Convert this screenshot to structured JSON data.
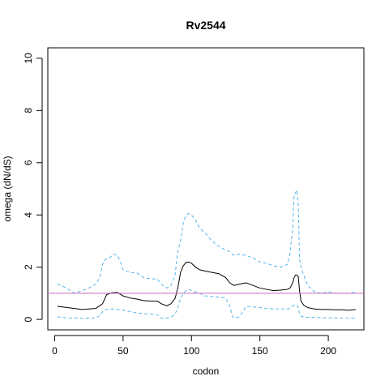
{
  "chart_data": {
    "type": "line",
    "title": "Rv2544",
    "xlabel": "codon",
    "ylabel": "omega (dN/dS)",
    "xlim": [
      -5,
      226
    ],
    "ylim": [
      -0.4,
      10.4
    ],
    "xticks": [
      0,
      50,
      100,
      150,
      200
    ],
    "yticks": [
      0,
      2,
      4,
      6,
      8,
      10
    ],
    "grid": false,
    "legend": "none",
    "reference_line": {
      "y": 1,
      "color": "#c86bbd"
    },
    "series": [
      {
        "role": "median",
        "style": "solid",
        "color": "#000000",
        "x": [
          2,
          10,
          20,
          30,
          35,
          38,
          42,
          46,
          50,
          55,
          60,
          65,
          70,
          75,
          78,
          82,
          85,
          88,
          90,
          92,
          94,
          96,
          98,
          100,
          103,
          106,
          110,
          115,
          120,
          125,
          128,
          131,
          135,
          140,
          145,
          150,
          155,
          160,
          165,
          170,
          172,
          174,
          175,
          176,
          177,
          178,
          179,
          180,
          182,
          185,
          190,
          195,
          200,
          205,
          210,
          215,
          220
        ],
        "y": [
          0.5,
          0.45,
          0.38,
          0.42,
          0.6,
          0.95,
          1.02,
          1.03,
          0.9,
          0.82,
          0.78,
          0.72,
          0.7,
          0.7,
          0.6,
          0.52,
          0.6,
          0.8,
          1.2,
          1.8,
          2.05,
          2.18,
          2.2,
          2.15,
          2.0,
          1.9,
          1.85,
          1.8,
          1.75,
          1.6,
          1.4,
          1.3,
          1.35,
          1.4,
          1.3,
          1.2,
          1.15,
          1.1,
          1.12,
          1.15,
          1.2,
          1.4,
          1.6,
          1.7,
          1.7,
          1.65,
          1.1,
          0.7,
          0.55,
          0.45,
          0.4,
          0.38,
          0.38,
          0.37,
          0.37,
          0.35,
          0.38
        ]
      },
      {
        "role": "upper-bound",
        "style": "dashed",
        "color": "#56b4e9",
        "x": [
          2,
          5,
          10,
          15,
          20,
          25,
          30,
          33,
          35,
          37,
          40,
          43,
          46,
          48,
          50,
          55,
          60,
          65,
          70,
          75,
          78,
          82,
          85,
          88,
          90,
          92,
          94,
          96,
          98,
          100,
          103,
          106,
          110,
          115,
          120,
          125,
          128,
          131,
          135,
          140,
          145,
          150,
          155,
          160,
          165,
          170,
          172,
          174,
          175,
          176,
          177,
          178,
          179,
          180,
          182,
          185,
          190,
          195,
          200,
          205,
          210,
          215,
          220
        ],
        "y": [
          1.35,
          1.3,
          1.15,
          1.0,
          1.1,
          1.2,
          1.35,
          1.6,
          2.1,
          2.3,
          2.35,
          2.5,
          2.45,
          2.2,
          1.9,
          1.8,
          1.78,
          1.6,
          1.55,
          1.55,
          1.35,
          1.2,
          1.3,
          1.7,
          2.6,
          3.0,
          3.7,
          4.0,
          4.05,
          4.0,
          3.8,
          3.5,
          3.3,
          3.0,
          2.8,
          2.65,
          2.6,
          2.45,
          2.5,
          2.45,
          2.35,
          2.2,
          2.15,
          2.05,
          2.0,
          2.1,
          2.5,
          3.5,
          4.7,
          4.85,
          4.95,
          4.5,
          2.3,
          2.0,
          1.7,
          1.3,
          1.05,
          1.0,
          1.05,
          1.0,
          1.0,
          1.0,
          1.05
        ]
      },
      {
        "role": "lower-bound",
        "style": "dashed",
        "color": "#56b4e9",
        "x": [
          2,
          10,
          20,
          30,
          33,
          35,
          38,
          42,
          46,
          50,
          55,
          60,
          65,
          70,
          75,
          78,
          82,
          85,
          88,
          90,
          92,
          94,
          96,
          98,
          100,
          103,
          106,
          110,
          115,
          120,
          125,
          128,
          130,
          132,
          135,
          140,
          145,
          150,
          155,
          160,
          165,
          170,
          172,
          174,
          175,
          176,
          177,
          178,
          179,
          180,
          182,
          185,
          190,
          195,
          200,
          205,
          210,
          215,
          220
        ],
        "y": [
          0.1,
          0.05,
          0.05,
          0.05,
          0.15,
          0.3,
          0.38,
          0.4,
          0.38,
          0.35,
          0.3,
          0.25,
          0.22,
          0.2,
          0.18,
          0.05,
          0.05,
          0.08,
          0.2,
          0.45,
          0.8,
          1.0,
          1.1,
          1.15,
          1.1,
          1.05,
          1.0,
          0.9,
          0.88,
          0.85,
          0.82,
          0.5,
          0.1,
          0.05,
          0.1,
          0.5,
          0.48,
          0.45,
          0.42,
          0.4,
          0.4,
          0.4,
          0.42,
          0.5,
          0.55,
          0.55,
          0.55,
          0.45,
          0.2,
          0.12,
          0.1,
          0.08,
          0.08,
          0.06,
          0.06,
          0.05,
          0.05,
          0.05,
          0.05
        ]
      }
    ]
  }
}
